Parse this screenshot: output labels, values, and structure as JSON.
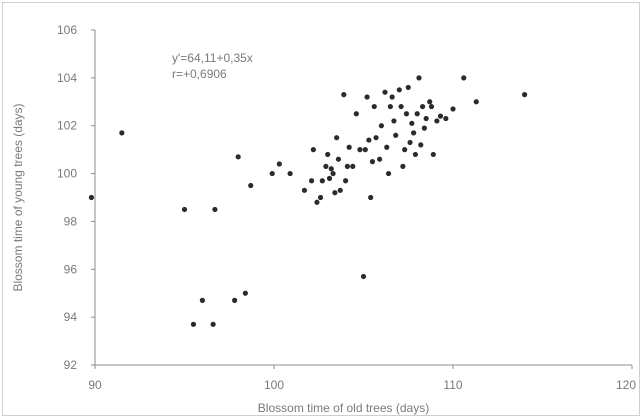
{
  "chart_data": {
    "type": "scatter",
    "xlabel": "Blossom time of old trees (days)",
    "ylabel": "Blossom time of young trees (days)",
    "xlim": [
      90,
      120
    ],
    "ylim": [
      92,
      106
    ],
    "xticks": [
      "90",
      "100",
      "110",
      "120"
    ],
    "yticks": [
      "92",
      "94",
      "96",
      "98",
      "100",
      "102",
      "104",
      "106"
    ],
    "grid": false,
    "annotation": {
      "equation": "y'=64,11+0,35x",
      "correlation": "r=+0,6906"
    },
    "colors": {
      "point": "#2b2b2b",
      "axis": "#8c8c8c",
      "text": "#7a7a7a"
    },
    "series": [
      {
        "points": [
          [
            89.8,
            99.0
          ],
          [
            91.5,
            101.7
          ],
          [
            95.0,
            98.5
          ],
          [
            96.7,
            98.5
          ],
          [
            95.5,
            93.7
          ],
          [
            96.6,
            93.7
          ],
          [
            96.0,
            94.7
          ],
          [
            97.8,
            94.7
          ],
          [
            98.4,
            95.0
          ],
          [
            98.0,
            100.7
          ],
          [
            98.7,
            99.5
          ],
          [
            99.9,
            100.0
          ],
          [
            100.3,
            100.4
          ],
          [
            100.9,
            100.0
          ],
          [
            101.7,
            99.3
          ],
          [
            102.1,
            99.7
          ],
          [
            102.2,
            101.0
          ],
          [
            102.4,
            98.8
          ],
          [
            102.6,
            99.0
          ],
          [
            102.7,
            99.7
          ],
          [
            102.9,
            100.3
          ],
          [
            103.0,
            100.8
          ],
          [
            103.1,
            99.8
          ],
          [
            103.2,
            100.2
          ],
          [
            103.3,
            100.0
          ],
          [
            103.4,
            99.2
          ],
          [
            103.5,
            101.5
          ],
          [
            103.6,
            100.6
          ],
          [
            103.7,
            99.3
          ],
          [
            103.9,
            103.3
          ],
          [
            104.0,
            99.7
          ],
          [
            104.1,
            100.3
          ],
          [
            104.2,
            101.1
          ],
          [
            104.4,
            100.3
          ],
          [
            104.6,
            102.5
          ],
          [
            104.8,
            101.0
          ],
          [
            105.0,
            95.7
          ],
          [
            105.1,
            101.0
          ],
          [
            105.2,
            103.2
          ],
          [
            105.3,
            101.4
          ],
          [
            105.4,
            99.0
          ],
          [
            105.5,
            100.5
          ],
          [
            105.6,
            102.8
          ],
          [
            105.7,
            101.5
          ],
          [
            105.9,
            100.6
          ],
          [
            106.0,
            102.0
          ],
          [
            106.2,
            103.4
          ],
          [
            106.3,
            101.1
          ],
          [
            106.4,
            100.0
          ],
          [
            106.5,
            102.8
          ],
          [
            106.6,
            103.2
          ],
          [
            106.7,
            102.2
          ],
          [
            106.8,
            101.6
          ],
          [
            107.0,
            103.5
          ],
          [
            107.1,
            102.8
          ],
          [
            107.2,
            100.3
          ],
          [
            107.3,
            101.0
          ],
          [
            107.4,
            102.5
          ],
          [
            107.5,
            103.6
          ],
          [
            107.6,
            101.3
          ],
          [
            107.7,
            102.1
          ],
          [
            107.8,
            101.7
          ],
          [
            107.9,
            100.8
          ],
          [
            108.0,
            102.5
          ],
          [
            108.1,
            104.0
          ],
          [
            108.2,
            101.2
          ],
          [
            108.3,
            102.8
          ],
          [
            108.4,
            101.9
          ],
          [
            108.5,
            102.3
          ],
          [
            108.7,
            103.0
          ],
          [
            108.8,
            102.8
          ],
          [
            108.9,
            100.8
          ],
          [
            109.1,
            102.2
          ],
          [
            109.3,
            102.4
          ],
          [
            109.6,
            102.3
          ],
          [
            110.0,
            102.7
          ],
          [
            110.6,
            104.0
          ],
          [
            111.3,
            103.0
          ],
          [
            114.0,
            103.3
          ]
        ]
      }
    ]
  }
}
